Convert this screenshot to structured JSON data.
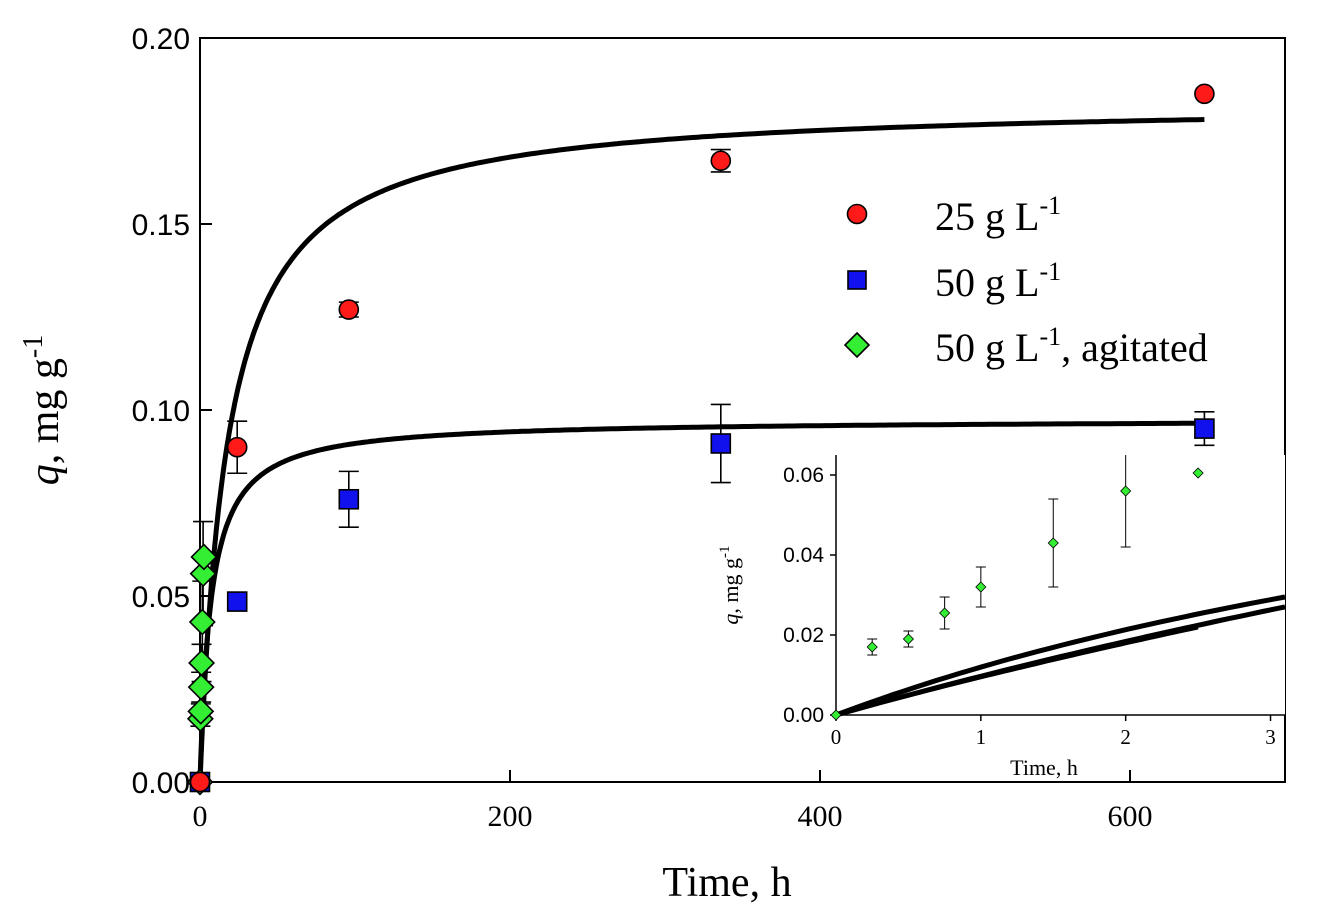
{
  "chart_data": {
    "type": "scatter",
    "title": "",
    "xlabel": "Time, h",
    "ylabel_main": "q",
    "ylabel_units": "mg g",
    "ylabel_exp": "-1",
    "xlim": [
      0,
      700
    ],
    "ylim": [
      0,
      0.2
    ],
    "xticks": [
      "0",
      "200",
      "400",
      "600"
    ],
    "yticks": [
      "0.00",
      "0.05",
      "0.10",
      "0.15",
      "0.20"
    ],
    "series": [
      {
        "name_main": "25 g L",
        "name_exp": "-1",
        "name_suffix": "",
        "marker": "circle",
        "color": "#ff1a1a",
        "x": [
          0,
          24,
          96,
          336,
          648
        ],
        "y": [
          0,
          0.09,
          0.127,
          0.167,
          0.185
        ],
        "err": [
          0,
          0.007,
          0.002,
          0.003,
          0.0
        ]
      },
      {
        "name_main": "50 g L",
        "name_exp": "-1",
        "name_suffix": "",
        "marker": "square",
        "color": "#1111ee",
        "x": [
          0,
          24,
          96,
          336,
          648
        ],
        "y": [
          0,
          0.0485,
          0.076,
          0.091,
          0.095
        ],
        "err": [
          0,
          0.0,
          0.0075,
          0.0105,
          0.0045
        ]
      },
      {
        "name_main": "50 g L",
        "name_exp": "-1",
        "name_suffix": ", agitated",
        "marker": "diamond",
        "color": "#33ee33",
        "x": [
          0,
          0.25,
          0.5,
          0.75,
          1,
          1.5,
          2,
          2.5
        ],
        "y": [
          0,
          0.017,
          0.019,
          0.0255,
          0.032,
          0.043,
          0.056,
          0.0605
        ],
        "err": [
          0,
          0.002,
          0.002,
          0.004,
          0.005,
          0.011,
          0.014,
          0.0
        ]
      }
    ],
    "fits": [
      {
        "qe": 0.183,
        "k": 0.3054
      },
      {
        "qe": 0.0975,
        "k": 1.4348
      }
    ],
    "inset": {
      "xlabel": "Time, h",
      "ylabel_main": "q",
      "ylabel_units": "mg g",
      "ylabel_exp": "-1",
      "xlim": [
        0,
        3.1
      ],
      "ylim": [
        0,
        0.065
      ],
      "xticks": [
        "0",
        "1",
        "2",
        "3"
      ],
      "yticks": [
        "0.00",
        "0.02",
        "0.04",
        "0.06"
      ],
      "fit_qe": 0.2,
      "fit_k": 0.245
    }
  }
}
